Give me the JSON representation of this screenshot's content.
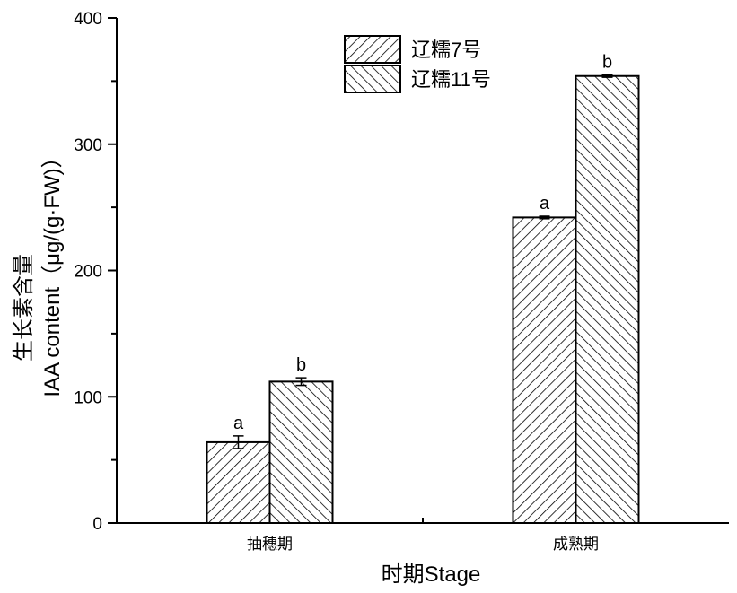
{
  "chart_data": {
    "type": "bar",
    "categories": [
      "抽穗期",
      "成熟期"
    ],
    "series": [
      {
        "name": "辽糯7号",
        "values": [
          64,
          242
        ],
        "errors": [
          5,
          1
        ],
        "labels": [
          "a",
          "a"
        ],
        "pattern": "hatch-forward"
      },
      {
        "name": "辽糯11号",
        "values": [
          112,
          354
        ],
        "errors": [
          3,
          1
        ],
        "labels": [
          "b",
          "b"
        ],
        "pattern": "hatch-backward"
      }
    ],
    "xlabel": "时期Stage",
    "ylabel_line1": "生长素含量",
    "ylabel_line2": "IAA content（μg/(g·FW)）",
    "ylim": [
      0,
      400
    ],
    "yticks": [
      0,
      100,
      200,
      300,
      400
    ],
    "legend_position": "top-center",
    "grid": false,
    "colors": {
      "axis": "#000000",
      "bar_fill": "#ffffff",
      "hatch": "#000000"
    }
  }
}
